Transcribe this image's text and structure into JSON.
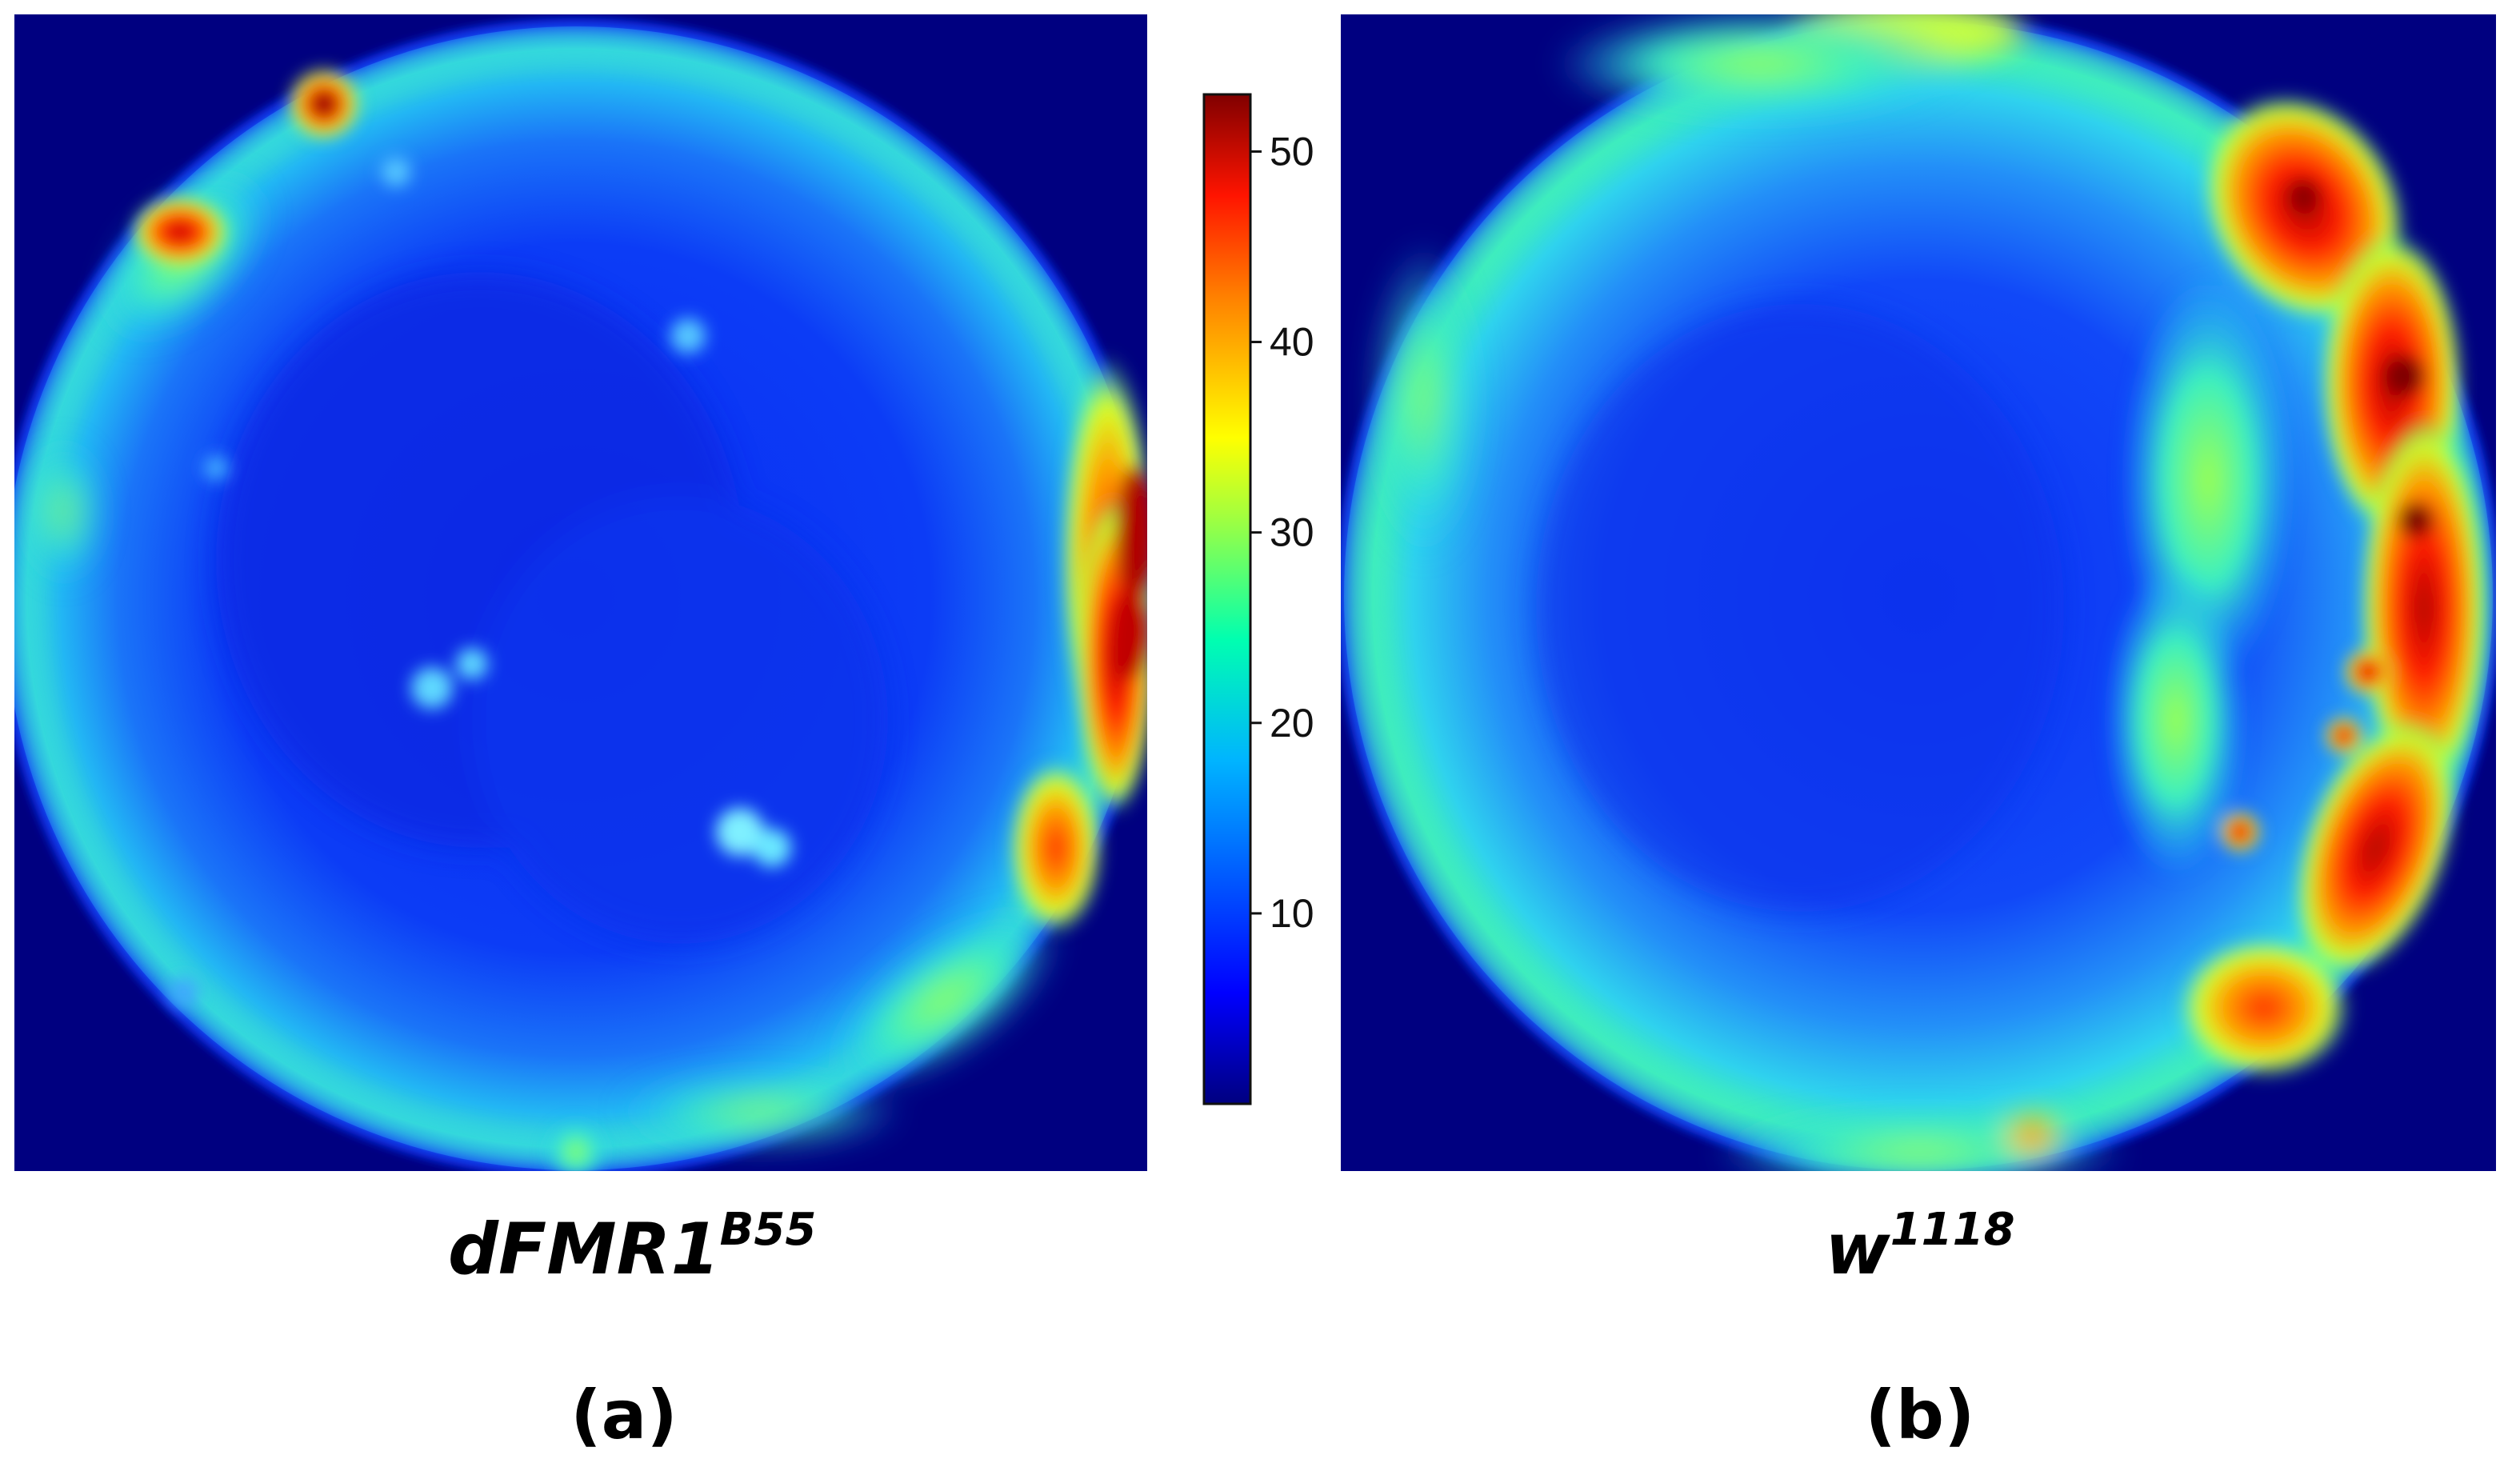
{
  "chart_data": [
    {
      "type": "heatmap",
      "panel_label": "(a)",
      "genotype_base": "dFMR1",
      "genotype_sup": "B55"
    },
    {
      "type": "heatmap",
      "panel_label": "(b)",
      "genotype_base": "w",
      "genotype_sup": "1118"
    }
  ],
  "colorbar": {
    "range": [
      0,
      53
    ],
    "ticks": [
      10,
      20,
      30,
      40,
      50
    ],
    "tick_labels": [
      "10",
      "20",
      "30",
      "40",
      "50"
    ],
    "colormap": "jet"
  }
}
